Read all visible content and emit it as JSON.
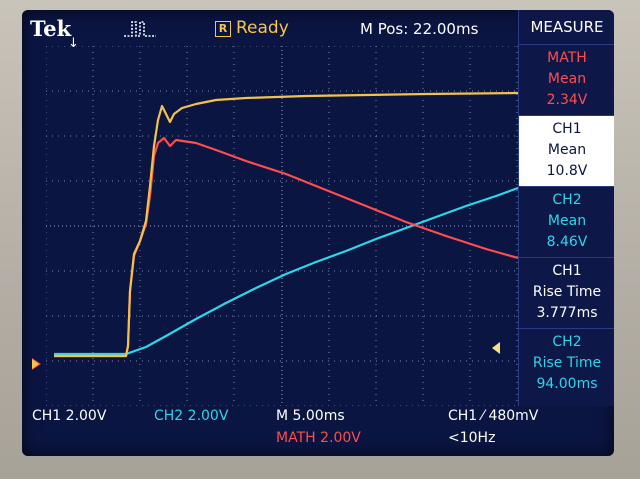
{
  "header": {
    "brand": "Tek",
    "trigger_marker": "↓",
    "acquisition_icon": "pulse-waveform-icon",
    "run_badge": "R",
    "run_status": "Ready",
    "horizontal_position": "M Pos: 22.00ms"
  },
  "sidebar": {
    "title": "MEASURE",
    "measurements": [
      {
        "source": "MATH",
        "type": "Mean",
        "value": "2.34V",
        "color": "#ff4d4d"
      },
      {
        "source": "CH1",
        "type": "Mean",
        "value": "10.8V",
        "color": "#0b1542"
      },
      {
        "source": "CH2",
        "type": "Mean",
        "value": "8.46V",
        "color": "#2fd5ea"
      },
      {
        "source": "CH1",
        "type": "Rise Time",
        "value": "3.777ms",
        "color": "#ffffff"
      },
      {
        "source": "CH2",
        "type": "Rise Time",
        "value": "94.00ms",
        "color": "#2fd5ea"
      }
    ]
  },
  "footer": {
    "ch1_scale": "CH1  2.00V",
    "ch2_scale": "CH2  2.00V",
    "math_scale": "MATH 2.00V",
    "timebase": "M 5.00ms",
    "trigger": "CH1 ⁄ 480mV",
    "trigger_freq": "<10Hz"
  },
  "colors": {
    "ch1": "#f3c24a",
    "ch2": "#2fd5ea",
    "math": "#ff4d4d",
    "screen_bg": "#0b1542",
    "text": "#ffffff"
  },
  "waveforms": {
    "ch1": "yellow trace",
    "ch2": "cyan trace",
    "math": "red trace"
  }
}
